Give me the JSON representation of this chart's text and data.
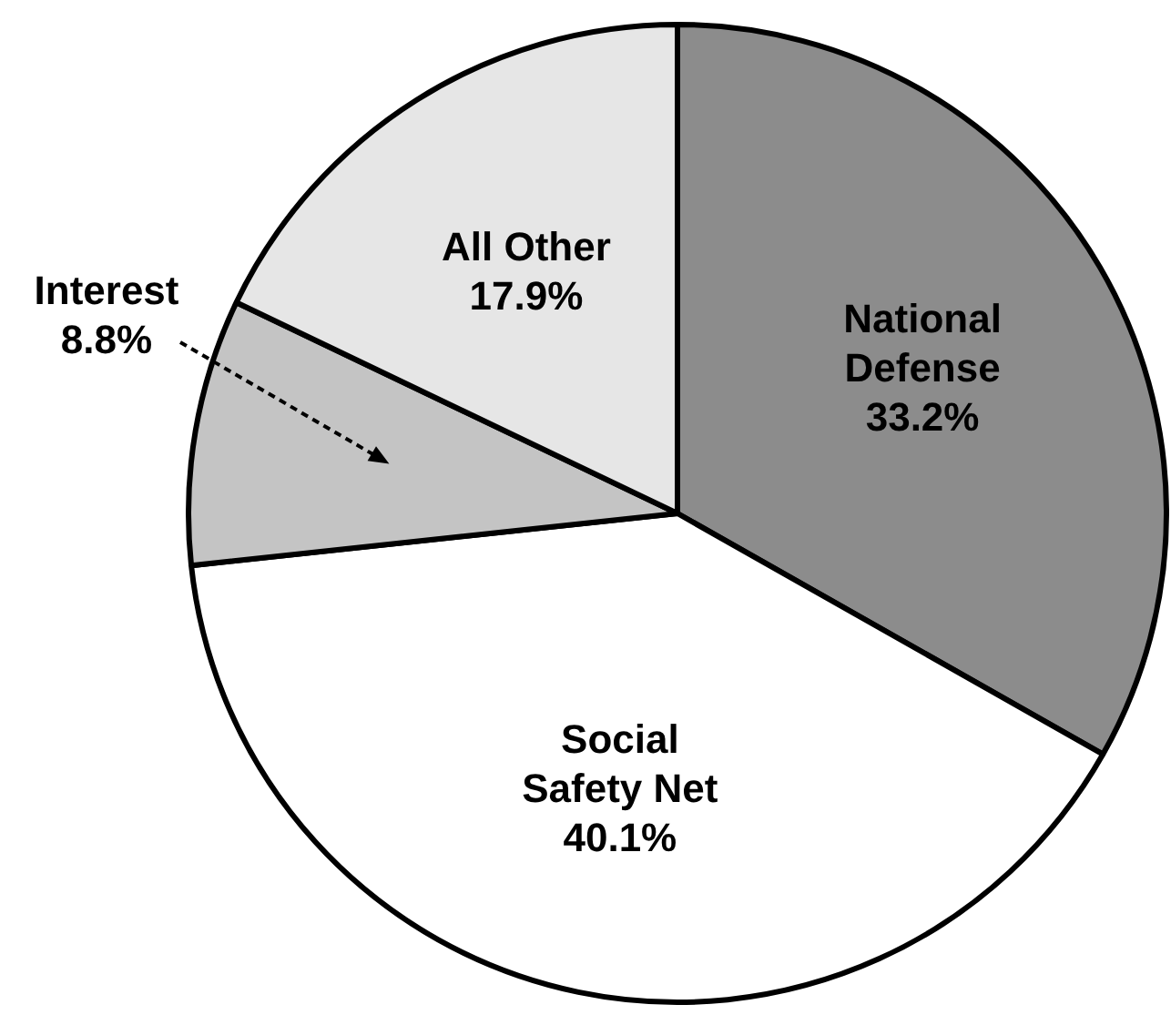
{
  "chart_data": {
    "type": "pie",
    "categories": [
      "National Defense",
      "Social Safety Net",
      "Interest",
      "All Other"
    ],
    "values": [
      33.2,
      40.1,
      8.8,
      17.9
    ],
    "colors": [
      "#8c8c8c",
      "#ffffff",
      "#c4c4c4",
      "#e6e6e6"
    ],
    "value_labels": [
      "33.2%",
      "40.1%",
      "8.8%",
      "17.9%"
    ]
  }
}
